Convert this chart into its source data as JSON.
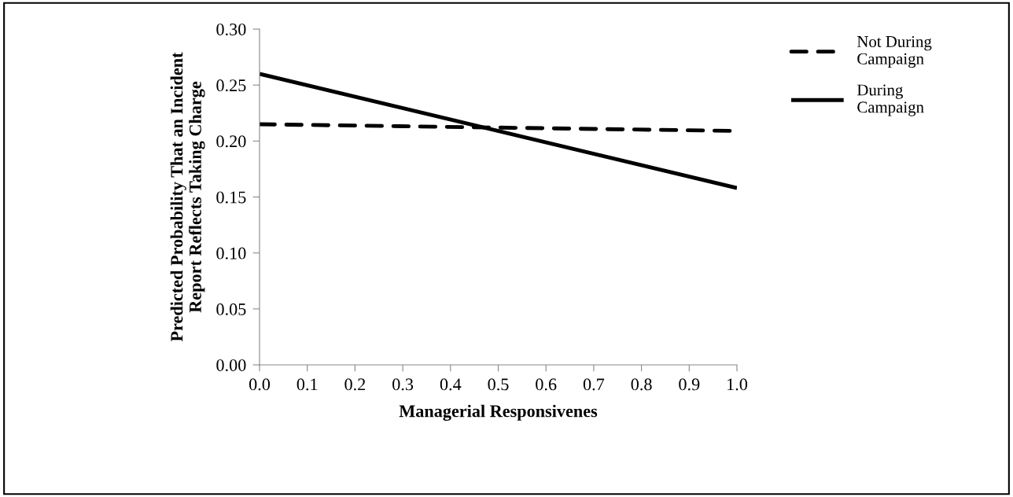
{
  "chart_data": {
    "type": "line",
    "xlabel": "Managerial Responsivenes",
    "ylabel": "Predicted Probability That an Incident\nReport Reflects Taking Charge",
    "x": [
      0,
      1
    ],
    "series": [
      {
        "name": "Not During\nCampaign",
        "color": "#000000",
        "line_style": "dashed",
        "values": [
          0.215,
          0.209
        ]
      },
      {
        "name": "During\nCampaign",
        "color": "#000000",
        "line_style": "solid",
        "values": [
          0.26,
          0.158
        ]
      }
    ],
    "xlim": [
      0,
      1
    ],
    "xticks": [
      {
        "value": 0,
        "label": "0.0"
      },
      {
        "value": 0.1,
        "label": "0.1"
      },
      {
        "value": 0.2,
        "label": "0.2"
      },
      {
        "value": 0.3,
        "label": "0.3"
      },
      {
        "value": 0.4,
        "label": "0.4"
      },
      {
        "value": 0.5,
        "label": "0.5"
      },
      {
        "value": 0.6,
        "label": "0.6"
      },
      {
        "value": 0.7,
        "label": "0.7"
      },
      {
        "value": 0.8,
        "label": "0.8"
      },
      {
        "value": 0.9,
        "label": "0.9"
      },
      {
        "value": 1,
        "label": "1.0"
      }
    ],
    "ylim": [
      0,
      0.3
    ],
    "yticks": [
      {
        "value": 0,
        "label": "0.00"
      },
      {
        "value": 0.05,
        "label": "0.05"
      },
      {
        "value": 0.1,
        "label": "0.10"
      },
      {
        "value": 0.15,
        "label": "0.15"
      },
      {
        "value": 0.2,
        "label": "0.20"
      },
      {
        "value": 0.25,
        "label": "0.25"
      },
      {
        "value": 0.3,
        "label": "0.30"
      }
    ],
    "grid": false,
    "legend": "top right",
    "marker": "none"
  }
}
